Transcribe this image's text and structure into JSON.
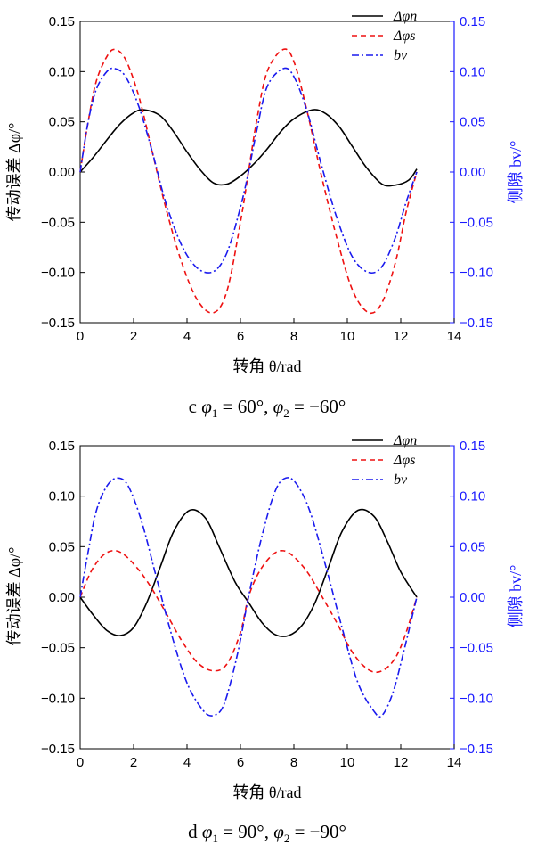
{
  "chart_data": [
    {
      "type": "line",
      "panel_letter": "c",
      "caption_parts": {
        "phi": "φ",
        "sub1": "1",
        "val1": " = 60°,  ",
        "sub2": "2",
        "val2": " = −60°"
      },
      "xlabel": "转角 θ/rad",
      "ylabel": "传动误差 Δφ/°",
      "ylabel_right": "侧隙 bv/°",
      "xlim": [
        0,
        14
      ],
      "ylim": [
        -0.15,
        0.15
      ],
      "x_ticks": [
        0,
        2,
        4,
        6,
        8,
        10,
        12,
        14
      ],
      "x_tick_labels": [
        "0",
        "2",
        "4",
        "6",
        "8",
        "10",
        "12",
        "14"
      ],
      "y_ticks": [
        -0.15,
        -0.1,
        -0.05,
        0.0,
        0.05,
        0.1,
        0.15
      ],
      "y_tick_labels": [
        "−0.15",
        "−0.10",
        "−0.05",
        "0.00",
        "0.05",
        "0.10",
        "0.15"
      ],
      "legend_position": "top-right",
      "grid": false,
      "series": [
        {
          "name": "Δφn",
          "color": "#000000",
          "dash": "solid",
          "x": [
            0,
            0.5,
            1,
            1.5,
            2,
            2.4,
            3,
            3.5,
            4,
            4.5,
            5,
            5.5,
            6,
            6.5,
            7,
            7.5,
            8,
            8.7,
            9.2,
            9.7,
            10.2,
            10.7,
            11.3,
            11.8,
            12.3,
            12.6
          ],
          "y": [
            0.0,
            0.015,
            0.032,
            0.048,
            0.059,
            0.062,
            0.056,
            0.04,
            0.02,
            0.002,
            -0.011,
            -0.012,
            -0.004,
            0.008,
            0.023,
            0.04,
            0.053,
            0.062,
            0.058,
            0.045,
            0.025,
            0.005,
            -0.012,
            -0.013,
            -0.008,
            0.003
          ]
        },
        {
          "name": "Δφs",
          "color": "#ee1111",
          "dash": "6,4",
          "x": [
            0,
            0.3,
            0.6,
            1,
            1.3,
            1.7,
            2.2,
            2.7,
            3.2,
            3.8,
            4.4,
            5.0,
            5.5,
            6.0,
            6.3,
            6.6,
            7.0,
            7.6,
            8.0,
            8.5,
            9.0,
            9.6,
            10.2,
            10.8,
            11.3,
            11.8,
            12.2,
            12.6
          ],
          "y": [
            0.0,
            0.05,
            0.09,
            0.115,
            0.122,
            0.112,
            0.075,
            0.02,
            -0.035,
            -0.09,
            -0.128,
            -0.14,
            -0.118,
            -0.05,
            0.0,
            0.05,
            0.1,
            0.122,
            0.11,
            0.06,
            0.0,
            -0.065,
            -0.118,
            -0.14,
            -0.13,
            -0.09,
            -0.04,
            0.0
          ]
        },
        {
          "name": "bv",
          "color": "#1a1aee",
          "dash": "8,3,2,3",
          "x": [
            0,
            0.3,
            0.6,
            1,
            1.3,
            1.7,
            2.2,
            2.7,
            3.2,
            3.8,
            4.4,
            5.0,
            5.5,
            6.0,
            6.3,
            6.6,
            7.0,
            7.6,
            8.0,
            8.5,
            9.0,
            9.6,
            10.2,
            10.8,
            11.3,
            11.8,
            12.2,
            12.6
          ],
          "y": [
            0.0,
            0.05,
            0.082,
            0.1,
            0.103,
            0.095,
            0.065,
            0.02,
            -0.03,
            -0.073,
            -0.096,
            -0.099,
            -0.08,
            -0.035,
            0.0,
            0.04,
            0.085,
            0.103,
            0.095,
            0.06,
            0.01,
            -0.045,
            -0.085,
            -0.1,
            -0.094,
            -0.065,
            -0.03,
            0.0
          ]
        }
      ]
    },
    {
      "type": "line",
      "panel_letter": "d",
      "caption_parts": {
        "phi": "φ",
        "sub1": "1",
        "val1": " = 90°,  ",
        "sub2": "2",
        "val2": " = −90°"
      },
      "xlabel": "转角 θ/rad",
      "ylabel": "传动误差 Δφ/°",
      "ylabel_right": "侧隙 bv/°",
      "xlim": [
        0,
        14
      ],
      "ylim": [
        -0.15,
        0.15
      ],
      "x_ticks": [
        0,
        2,
        4,
        6,
        8,
        10,
        12,
        14
      ],
      "x_tick_labels": [
        "0",
        "2",
        "4",
        "6",
        "8",
        "10",
        "12",
        "14"
      ],
      "y_ticks": [
        -0.15,
        -0.1,
        -0.05,
        0.0,
        0.05,
        0.1,
        0.15
      ],
      "y_tick_labels": [
        "−0.15",
        "−0.10",
        "−0.05",
        "0.00",
        "0.05",
        "0.10",
        "0.15"
      ],
      "legend_position": "top-right",
      "grid": false,
      "series": [
        {
          "name": "Δφn",
          "color": "#000000",
          "dash": "solid",
          "x": [
            0,
            0.5,
            1,
            1.5,
            2,
            2.5,
            3,
            3.5,
            4.1,
            4.7,
            5.2,
            5.8,
            6.3,
            6.8,
            7.3,
            7.8,
            8.3,
            8.8,
            9.3,
            9.8,
            10.4,
            11.0,
            11.5,
            12.0,
            12.6
          ],
          "y": [
            0.0,
            -0.018,
            -0.033,
            -0.038,
            -0.03,
            -0.005,
            0.03,
            0.065,
            0.086,
            0.078,
            0.05,
            0.015,
            -0.005,
            -0.025,
            -0.037,
            -0.038,
            -0.028,
            -0.005,
            0.03,
            0.065,
            0.086,
            0.08,
            0.055,
            0.025,
            0.0
          ]
        },
        {
          "name": "Δφs",
          "color": "#ee1111",
          "dash": "6,4",
          "x": [
            0,
            0.4,
            0.8,
            1.2,
            1.6,
            2.1,
            2.6,
            3.2,
            3.8,
            4.4,
            5.0,
            5.5,
            6.0,
            6.3,
            6.7,
            7.2,
            7.6,
            8.0,
            8.5,
            9.0,
            9.6,
            10.2,
            10.8,
            11.3,
            11.8,
            12.2,
            12.6
          ],
          "y": [
            0.0,
            0.025,
            0.04,
            0.046,
            0.043,
            0.03,
            0.012,
            -0.015,
            -0.043,
            -0.065,
            -0.073,
            -0.066,
            -0.035,
            0.0,
            0.025,
            0.042,
            0.046,
            0.04,
            0.025,
            0.003,
            -0.025,
            -0.055,
            -0.072,
            -0.073,
            -0.06,
            -0.035,
            0.0
          ]
        },
        {
          "name": "bv",
          "color": "#1a1aee",
          "dash": "8,3,2,3",
          "x": [
            0,
            0.3,
            0.6,
            1,
            1.4,
            1.8,
            2.3,
            2.8,
            3.4,
            4.0,
            4.6,
            5.0,
            5.4,
            5.9,
            6.3,
            6.8,
            7.3,
            7.7,
            8.1,
            8.6,
            9.2,
            9.8,
            10.4,
            11.0,
            11.3,
            11.7,
            12.1,
            12.6
          ],
          "y": [
            0.0,
            0.045,
            0.085,
            0.11,
            0.118,
            0.11,
            0.075,
            0.025,
            -0.035,
            -0.085,
            -0.112,
            -0.117,
            -0.105,
            -0.055,
            0.0,
            0.06,
            0.105,
            0.118,
            0.112,
            0.085,
            0.03,
            -0.03,
            -0.085,
            -0.113,
            -0.117,
            -0.095,
            -0.055,
            0.0
          ]
        }
      ]
    }
  ]
}
